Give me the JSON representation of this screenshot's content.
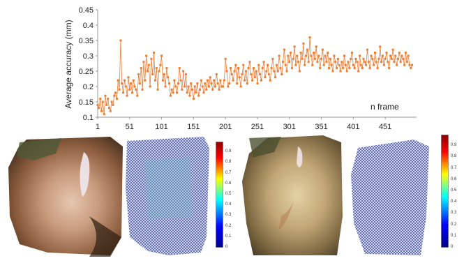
{
  "chart_data": {
    "type": "line",
    "ylabel": "Average accuracy (mm)",
    "xlabel": "n frame",
    "ylim": [
      0.1,
      0.45
    ],
    "xlim": [
      1,
      500
    ],
    "y_ticks": [
      "0.1",
      "0.15",
      "0.2",
      "0.25",
      "0.3",
      "0.35",
      "0.4",
      "0.45"
    ],
    "x_ticks": [
      "1",
      "51",
      "101",
      "151",
      "201",
      "251",
      "301",
      "351",
      "401",
      "451"
    ],
    "x_tick_values": [
      1,
      51,
      101,
      151,
      201,
      251,
      301,
      351,
      401,
      451
    ],
    "color": "#ED7D31",
    "marker": "square",
    "series": [
      {
        "x_start": 1,
        "x_step": 2,
        "values": [
          0.14,
          0.13,
          0.16,
          0.12,
          0.15,
          0.11,
          0.17,
          0.14,
          0.16,
          0.13,
          0.12,
          0.15,
          0.14,
          0.17,
          0.18,
          0.16,
          0.22,
          0.19,
          0.35,
          0.21,
          0.18,
          0.22,
          0.2,
          0.17,
          0.23,
          0.19,
          0.21,
          0.18,
          0.22,
          0.2,
          0.19,
          0.17,
          0.24,
          0.21,
          0.26,
          0.19,
          0.28,
          0.22,
          0.3,
          0.25,
          0.27,
          0.2,
          0.29,
          0.24,
          0.31,
          0.22,
          0.26,
          0.19,
          0.25,
          0.27,
          0.3,
          0.22,
          0.24,
          0.2,
          0.26,
          0.23,
          0.21,
          0.17,
          0.19,
          0.18,
          0.22,
          0.2,
          0.18,
          0.21,
          0.26,
          0.22,
          0.19,
          0.25,
          0.2,
          0.24,
          0.18,
          0.2,
          0.17,
          0.21,
          0.19,
          0.16,
          0.2,
          0.18,
          0.21,
          0.17,
          0.19,
          0.22,
          0.2,
          0.18,
          0.21,
          0.19,
          0.22,
          0.2,
          0.23,
          0.21,
          0.19,
          0.22,
          0.2,
          0.24,
          0.21,
          0.19,
          0.22,
          0.2,
          0.2,
          0.22,
          0.29,
          0.25,
          0.2,
          0.21,
          0.26,
          0.24,
          0.22,
          0.25,
          0.27,
          0.21,
          0.26,
          0.23,
          0.2,
          0.24,
          0.27,
          0.22,
          0.25,
          0.21,
          0.26,
          0.28,
          0.24,
          0.22,
          0.26,
          0.23,
          0.25,
          0.21,
          0.27,
          0.24,
          0.22,
          0.26,
          0.28,
          0.23,
          0.25,
          0.27,
          0.24,
          0.22,
          0.26,
          0.29,
          0.25,
          0.23,
          0.27,
          0.25,
          0.3,
          0.26,
          0.24,
          0.28,
          0.32,
          0.27,
          0.25,
          0.3,
          0.28,
          0.31,
          0.26,
          0.29,
          0.33,
          0.27,
          0.3,
          0.28,
          0.25,
          0.31,
          0.29,
          0.34,
          0.27,
          0.3,
          0.32,
          0.28,
          0.36,
          0.3,
          0.27,
          0.31,
          0.29,
          0.33,
          0.28,
          0.3,
          0.26,
          0.29,
          0.32,
          0.27,
          0.3,
          0.28,
          0.31,
          0.26,
          0.29,
          0.27,
          0.25,
          0.3,
          0.28,
          0.26,
          0.29,
          0.27,
          0.25,
          0.28,
          0.26,
          0.3,
          0.27,
          0.25,
          0.28,
          0.26,
          0.29,
          0.31,
          0.27,
          0.26,
          0.29,
          0.28,
          0.25,
          0.3,
          0.27,
          0.26,
          0.29,
          0.28,
          0.27,
          0.32,
          0.28,
          0.26,
          0.3,
          0.29,
          0.27,
          0.31,
          0.28,
          0.26,
          0.29,
          0.33,
          0.28,
          0.3,
          0.27,
          0.29,
          0.31,
          0.28,
          0.26,
          0.3,
          0.29,
          0.32,
          0.28,
          0.3,
          0.27,
          0.29,
          0.31,
          0.28,
          0.3,
          0.29,
          0.27,
          0.31,
          0.28,
          0.3,
          0.27,
          0.26,
          0.27
        ]
      }
    ]
  },
  "colorbar_ticks": [
    "0.9",
    "0.8",
    "0.7",
    "0.6",
    "0.5",
    "0.4",
    "0.3",
    "0.2",
    "0.1",
    "0"
  ]
}
